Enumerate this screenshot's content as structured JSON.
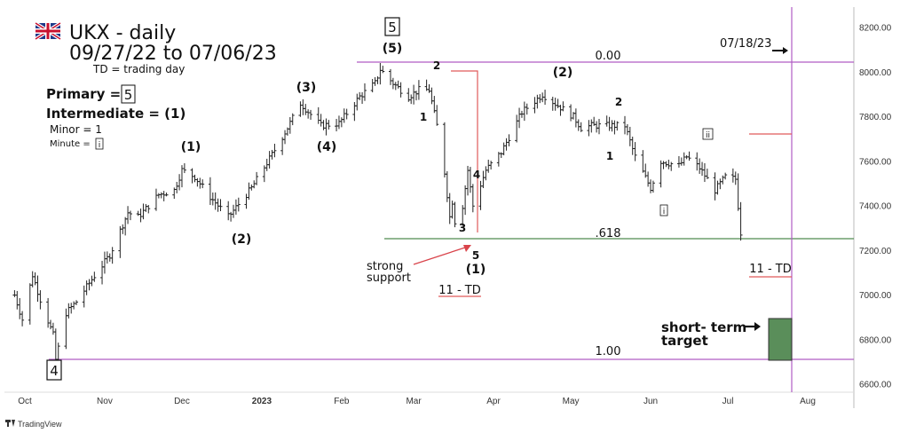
{
  "chart_data": {
    "type": "bar",
    "subtype": "ohlc",
    "title": "UKX - daily",
    "subtitle": "09/27/22 to 07/06/23",
    "note": "TD = trading day",
    "xlabel": "",
    "ylabel": "",
    "x_ticks": [
      "Oct",
      "Nov",
      "Dec",
      "2023",
      "Feb",
      "Mar",
      "Apr",
      "May",
      "Jun",
      "Jul",
      "Aug"
    ],
    "y_ticks": [
      "6600.00",
      "6800.00",
      "7000.00",
      "7200.00",
      "7400.00",
      "7600.00",
      "7800.00",
      "8000.00",
      "8200.00"
    ],
    "ylim": [
      6550,
      8250
    ],
    "grid": false,
    "legend": {
      "primary": "Primary =",
      "primary_val": "5",
      "intermediate": "Intermediate = (1)",
      "minor": "Minor = 1",
      "minute": "Minute =",
      "minute_val": "i"
    },
    "price_path": [
      [
        "2022-09-27",
        7000
      ],
      [
        "2022-09-30",
        6890
      ],
      [
        "2022-10-04",
        7090
      ],
      [
        "2022-10-07",
        6980
      ],
      [
        "2022-10-12",
        6820
      ],
      [
        "2022-10-13",
        6710
      ],
      [
        "2022-10-17",
        6920
      ],
      [
        "2022-10-21",
        6970
      ],
      [
        "2022-10-27",
        7070
      ],
      [
        "2022-11-03",
        7180
      ],
      [
        "2022-11-10",
        7370
      ],
      [
        "2022-11-14",
        7350
      ],
      [
        "2022-11-22",
        7450
      ],
      [
        "2022-11-28",
        7470
      ],
      [
        "2022-12-01",
        7560
      ],
      [
        "2022-12-06",
        7530
      ],
      [
        "2022-12-12",
        7440
      ],
      [
        "2022-12-19",
        7350
      ],
      [
        "2022-12-28",
        7480
      ],
      [
        "2023-01-05",
        7630
      ],
      [
        "2023-01-11",
        7750
      ],
      [
        "2023-01-16",
        7860
      ],
      [
        "2023-01-24",
        7760
      ],
      [
        "2023-01-31",
        7770
      ],
      [
        "2023-02-08",
        7890
      ],
      [
        "2023-02-14",
        7950
      ],
      [
        "2023-02-16",
        8012
      ],
      [
        "2023-02-21",
        7950
      ],
      [
        "2023-02-27",
        7890
      ],
      [
        "2023-03-03",
        7920
      ],
      [
        "2023-03-07",
        7920
      ],
      [
        "2023-03-10",
        7760
      ],
      [
        "2023-03-13",
        7550
      ],
      [
        "2023-03-15",
        7350
      ],
      [
        "2023-03-16",
        7420
      ],
      [
        "2023-03-17",
        7330
      ],
      [
        "2023-03-20",
        7400
      ],
      [
        "2023-03-22",
        7560
      ],
      [
        "2023-03-24",
        7400
      ],
      [
        "2023-03-29",
        7560
      ],
      [
        "2023-04-04",
        7640
      ],
      [
        "2023-04-12",
        7820
      ],
      [
        "2023-04-20",
        7900
      ],
      [
        "2023-04-26",
        7850
      ],
      [
        "2023-05-02",
        7800
      ],
      [
        "2023-05-05",
        7750
      ],
      [
        "2023-05-09",
        7760
      ],
      [
        "2023-05-15",
        7760
      ],
      [
        "2023-05-22",
        7760
      ],
      [
        "2023-05-26",
        7620
      ],
      [
        "2023-06-01",
        7480
      ],
      [
        "2023-06-05",
        7600
      ],
      [
        "2023-06-12",
        7580
      ],
      [
        "2023-06-15",
        7620
      ],
      [
        "2023-06-20",
        7570
      ],
      [
        "2023-06-26",
        7470
      ],
      [
        "2023-06-30",
        7530
      ],
      [
        "2023-07-04",
        7520
      ],
      [
        "2023-07-06",
        7280
      ]
    ],
    "labels": {
      "wave_1_dec": "(1)",
      "wave_2_dec": "(2)",
      "wave_3_jan": "(3)",
      "wave_4_jan": "(4)",
      "wave_5_feb": "(5)",
      "primary_5_box": "5",
      "primary_4_box": "4",
      "minor_1_mar": "1",
      "minor_2_mar": "2",
      "minor_3_mar": "3",
      "minor_4_mar": "4",
      "minor_5_mar": "5",
      "interm_1_mar": "(1)",
      "interm_2_apr": "(2)",
      "minor_1_may": "1",
      "minor_2_may": "2",
      "minute_i_jun": "i",
      "minute_ii_jun": "ii",
      "fib_0": "0.00",
      "fib_618": ".618",
      "fib_100": "1.00",
      "date_label": "07/18/23",
      "td_label_1": "11 - TD",
      "td_label_2": "11 - TD",
      "strong_support": "strong support",
      "short_term_target": "short- term target"
    },
    "levels": {
      "fib_0": 8040,
      "fib_618": 7250,
      "fib_100": 6710,
      "target_low": 6710,
      "target_high": 6890
    },
    "colors": {
      "price": "#222222",
      "fib_line": "#b05cc4",
      "green_line": "#4f8a4f",
      "red_line": "#e05a5a",
      "target": "#4f8a4f",
      "axis_text": "#333333"
    }
  },
  "footer": {
    "brand": "TradingView"
  }
}
